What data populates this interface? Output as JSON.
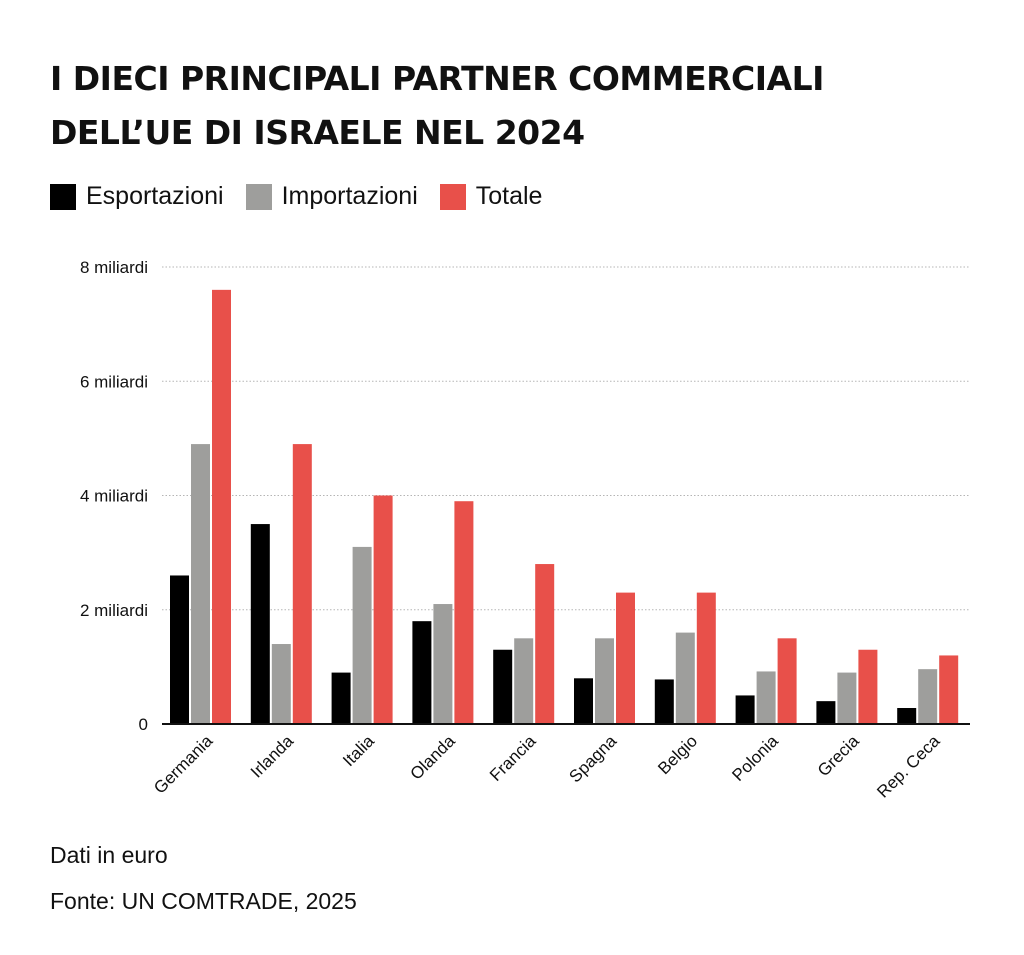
{
  "header": {
    "title_line1": "I DIECI PRINCIPALI PARTNER COMMERCIALI",
    "title_line2": "DELL’UE DI ISRAELE NEL 2024"
  },
  "legend": [
    {
      "label": "Esportazioni",
      "color": "#000000"
    },
    {
      "label": "Importazioni",
      "color": "#9e9e9c"
    },
    {
      "label": "Totale",
      "color": "#e8504a"
    }
  ],
  "footer": {
    "note": "Dati in euro",
    "source": "Fonte:  UN COMTRADE, 2025"
  },
  "chart_data": {
    "type": "bar",
    "categories": [
      "Germania",
      "Irlanda",
      "Italia",
      "Olanda",
      "Francia",
      "Spagna",
      "Belgio",
      "Polonia",
      "Grecia",
      "Rep. Ceca"
    ],
    "series": [
      {
        "name": "Esportazioni",
        "color": "#000000",
        "values": [
          2.6,
          3.5,
          0.9,
          1.8,
          1.3,
          0.8,
          0.78,
          0.5,
          0.4,
          0.28
        ]
      },
      {
        "name": "Importazioni",
        "color": "#9e9e9c",
        "values": [
          4.9,
          1.4,
          3.1,
          2.1,
          1.5,
          1.5,
          1.6,
          0.92,
          0.9,
          0.96
        ]
      },
      {
        "name": "Totale",
        "color": "#e8504a",
        "values": [
          7.6,
          4.9,
          4.0,
          3.9,
          2.8,
          2.3,
          2.3,
          1.5,
          1.3,
          1.2
        ]
      }
    ],
    "yticks": [
      0,
      2,
      4,
      6,
      8
    ],
    "ytick_labels": [
      "0",
      "2 miliardi",
      "4 miliardi",
      "6 miliardi",
      "8 miliardi"
    ],
    "ylim": [
      0,
      8
    ],
    "grid": true,
    "legend_position": "top-left"
  }
}
